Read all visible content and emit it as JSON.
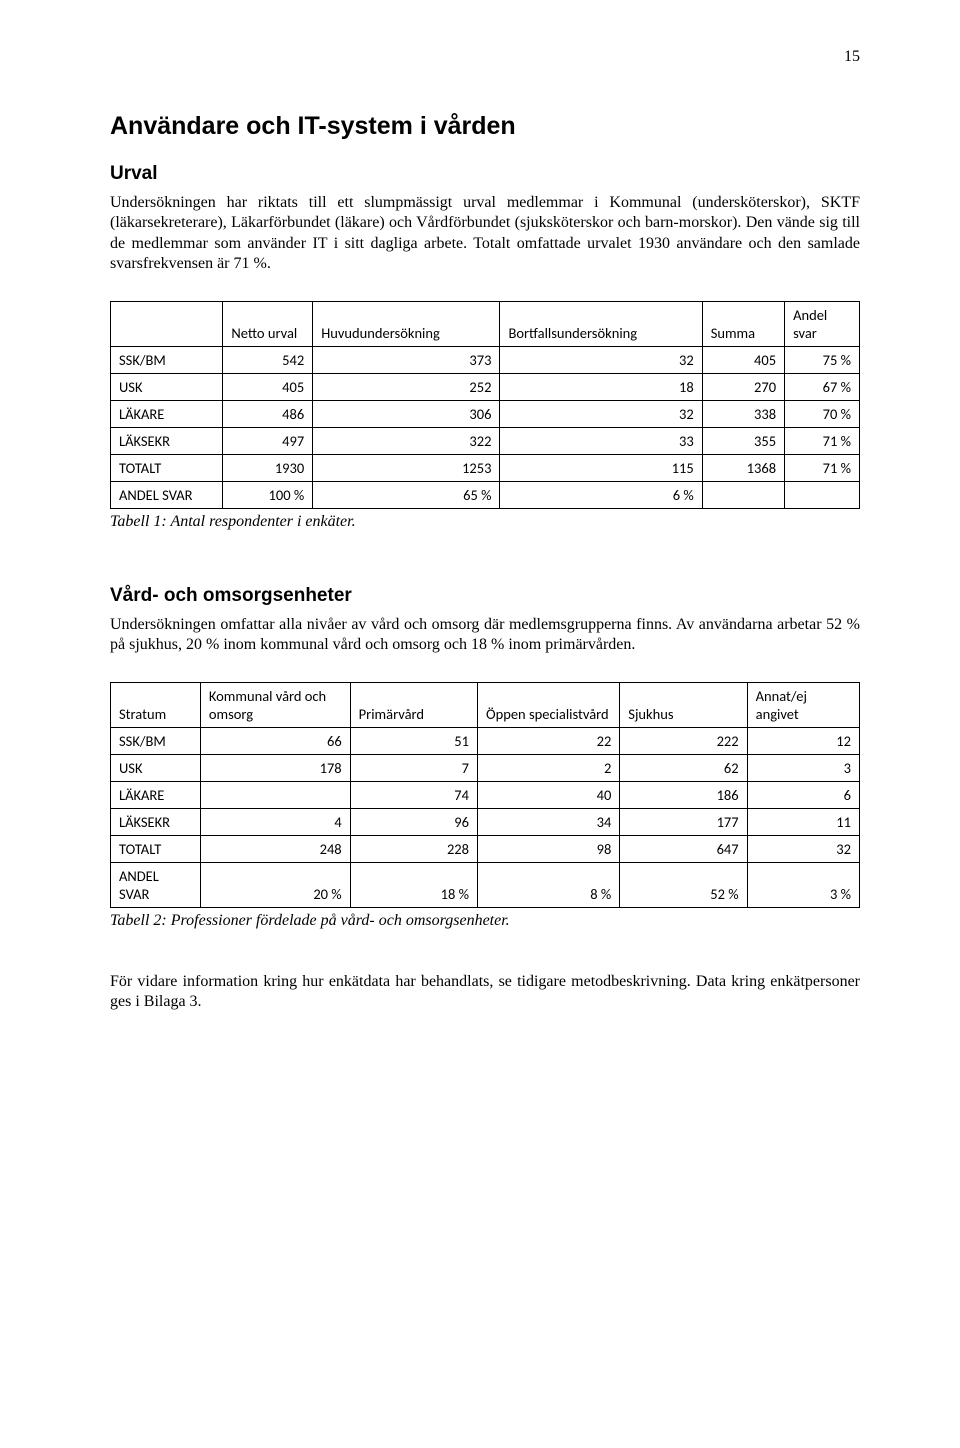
{
  "page_number": "15",
  "colors": {
    "text": "#000000",
    "background": "#ffffff",
    "table_border": "#000000"
  },
  "typography": {
    "body_font": "Times New Roman",
    "heading_font": "Arial",
    "table_font": "Calibri",
    "body_size_pt": 12,
    "h1_size_pt": 18,
    "h2_size_pt": 14,
    "table_size_pt": 11
  },
  "h1": "Användare och IT-system i vården",
  "section1": {
    "heading": "Urval",
    "para": "Undersökningen har riktats till ett slumpmässigt urval medlemmar i Kommunal (undersköterskor), SKTF (läkarsekreterare), Läkarförbundet (läkare) och Vårdförbundet (sjuksköterskor och barn-morskor). Den vände sig till de medlemmar som använder IT i sitt dagliga arbete. Totalt omfattade urvalet 1930 användare och den samlade svarsfrekvensen är 71 %."
  },
  "table1": {
    "columns": [
      "",
      "Netto urval",
      "Huvudundersökning",
      "Bortfallsundersökning",
      "Summa",
      "Andel svar"
    ],
    "rows": [
      [
        "SSK/BM",
        "542",
        "373",
        "32",
        "405",
        "75 %"
      ],
      [
        "USK",
        "405",
        "252",
        "18",
        "270",
        "67 %"
      ],
      [
        "LÄKARE",
        "486",
        "306",
        "32",
        "338",
        "70 %"
      ],
      [
        "LÄKSEKR",
        "497",
        "322",
        "33",
        "355",
        "71 %"
      ],
      [
        "TOTALT",
        "1930",
        "1253",
        "115",
        "1368",
        "71 %"
      ],
      [
        "ANDEL SVAR",
        "100 %",
        "65 %",
        "6 %",
        "",
        ""
      ]
    ],
    "caption": "Tabell 1: Antal respondenter i enkäter."
  },
  "section2": {
    "heading": "Vård- och omsorgsenheter",
    "para": "Undersökningen omfattar alla nivåer av vård och omsorg där medlemsgrupperna finns. Av användarna arbetar 52 % på sjukhus, 20 % inom kommunal vård och omsorg och 18 % inom primärvården."
  },
  "table2": {
    "columns": [
      "Stratum",
      "Kommunal vård och omsorg",
      "Primärvård",
      "Öppen specialistvård",
      "Sjukhus",
      "Annat/ej angivet"
    ],
    "rows": [
      [
        "SSK/BM",
        "66",
        "51",
        "22",
        "222",
        "12"
      ],
      [
        "USK",
        "178",
        "7",
        "2",
        "62",
        "3"
      ],
      [
        "LÄKARE",
        "",
        "74",
        "40",
        "186",
        "6"
      ],
      [
        "LÄKSEKR",
        "4",
        "96",
        "34",
        "177",
        "11"
      ],
      [
        "TOTALT",
        "248",
        "228",
        "98",
        "647",
        "32"
      ],
      [
        "ANDEL SVAR",
        "20 %",
        "18 %",
        "8 %",
        "52 %",
        "3 %"
      ]
    ],
    "caption": "Tabell 2: Professioner fördelade på vård- och omsorgsenheter."
  },
  "footer_para": "För vidare information kring hur enkätdata har behandlats, se tidigare metodbeskrivning. Data kring enkätpersoner ges i Bilaga 3."
}
